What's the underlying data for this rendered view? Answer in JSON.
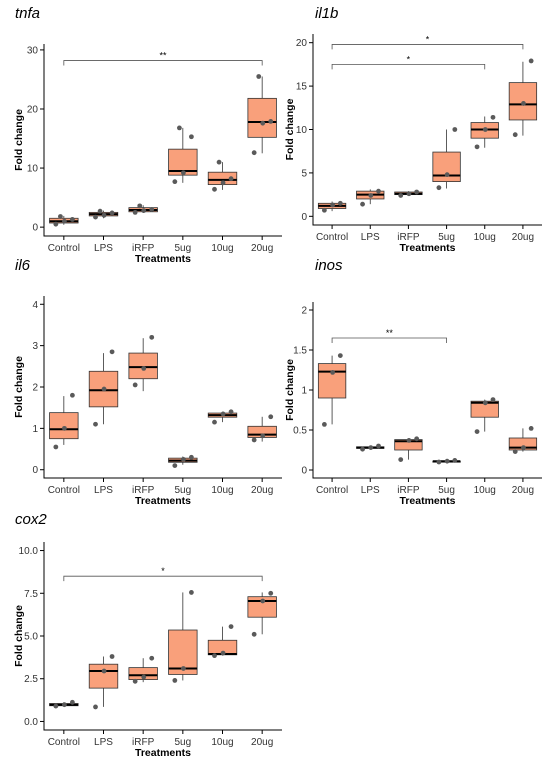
{
  "colors": {
    "box_fill": "#F9A07B",
    "box_stroke": "#333333",
    "median": "#000000",
    "point": "#5a5a5a",
    "axis": "#000000",
    "bracket": "#555555"
  },
  "chart_data": [
    {
      "type": "box",
      "title": "tnfa",
      "xlabel": "Treatments",
      "ylabel": "Fold change",
      "categories": [
        "Control",
        "LPS",
        "iRFP",
        "5ug",
        "10ug",
        "20ug"
      ],
      "ylim": [
        -1.5,
        31
      ],
      "yticks": [
        0,
        10,
        20,
        30
      ],
      "boxes": [
        {
          "min": 0.4,
          "q1": 0.7,
          "median": 1.0,
          "q3": 1.5,
          "max": 1.9
        },
        {
          "min": 1.5,
          "q1": 1.9,
          "median": 2.2,
          "q3": 2.5,
          "max": 2.8
        },
        {
          "min": 2.4,
          "q1": 2.6,
          "median": 2.9,
          "q3": 3.3,
          "max": 3.7
        },
        {
          "min": 7.5,
          "q1": 8.8,
          "median": 9.5,
          "q3": 13.2,
          "max": 16.8
        },
        {
          "min": 6.3,
          "q1": 7.2,
          "median": 8.0,
          "q3": 9.3,
          "max": 11.0
        },
        {
          "min": 12.5,
          "q1": 15.2,
          "median": 17.8,
          "q3": 21.8,
          "max": 25.5
        }
      ],
      "points": [
        [
          0.5,
          1.0,
          1.3,
          1.8
        ],
        [
          1.7,
          2.0,
          2.4,
          2.7
        ],
        [
          2.5,
          2.8,
          3.0,
          3.6
        ],
        [
          7.7,
          9.2,
          15.3,
          16.8
        ],
        [
          6.4,
          7.5,
          8.2,
          11.0
        ],
        [
          12.6,
          17.6,
          17.9,
          25.5
        ]
      ],
      "brackets": [
        {
          "from": 0,
          "to": 5,
          "y": 28.2,
          "label": "**"
        }
      ]
    },
    {
      "type": "box",
      "title": "il1b",
      "xlabel": "Treatments",
      "ylabel": "Fold change",
      "categories": [
        "Control",
        "LPS",
        "iRFP",
        "5ug",
        "10ug",
        "20ug"
      ],
      "ylim": [
        -1,
        21
      ],
      "yticks": [
        0,
        5,
        10,
        15,
        20
      ],
      "boxes": [
        {
          "min": 0.6,
          "q1": 0.9,
          "median": 1.2,
          "q3": 1.5,
          "max": 1.7
        },
        {
          "min": 1.4,
          "q1": 2.0,
          "median": 2.5,
          "q3": 2.9,
          "max": 3.1
        },
        {
          "min": 2.4,
          "q1": 2.5,
          "median": 2.6,
          "q3": 2.8,
          "max": 2.9
        },
        {
          "min": 3.2,
          "q1": 4.0,
          "median": 4.7,
          "q3": 7.4,
          "max": 10.0
        },
        {
          "min": 7.9,
          "q1": 9.0,
          "median": 10.0,
          "q3": 10.8,
          "max": 11.5
        },
        {
          "min": 9.3,
          "q1": 11.1,
          "median": 12.9,
          "q3": 15.4,
          "max": 17.8
        }
      ],
      "points": [
        [
          0.7,
          1.3,
          1.5
        ],
        [
          1.4,
          2.4,
          2.9
        ],
        [
          2.4,
          2.6,
          2.8
        ],
        [
          3.3,
          4.8,
          10.0
        ],
        [
          8.0,
          10.0,
          11.4
        ],
        [
          9.4,
          13.0,
          17.9
        ]
      ],
      "brackets": [
        {
          "from": 0,
          "to": 5,
          "y": 19.8,
          "label": "*"
        },
        {
          "from": 0,
          "to": 4,
          "y": 17.5,
          "label": "*"
        }
      ]
    },
    {
      "type": "box",
      "title": "il6",
      "xlabel": "Treatments",
      "ylabel": "Fold change",
      "categories": [
        "Control",
        "LPS",
        "iRFP",
        "5ug",
        "10ug",
        "20ug"
      ],
      "ylim": [
        -0.2,
        4.2
      ],
      "yticks": [
        0,
        1,
        2,
        3,
        4
      ],
      "boxes": [
        {
          "min": 0.6,
          "q1": 0.75,
          "median": 0.98,
          "q3": 1.38,
          "max": 1.78
        },
        {
          "min": 1.1,
          "q1": 1.52,
          "median": 1.92,
          "q3": 2.38,
          "max": 2.82
        },
        {
          "min": 1.9,
          "q1": 2.2,
          "median": 2.48,
          "q3": 2.82,
          "max": 3.18
        },
        {
          "min": 0.12,
          "q1": 0.18,
          "median": 0.22,
          "q3": 0.28,
          "max": 0.32
        },
        {
          "min": 1.15,
          "q1": 1.27,
          "median": 1.32,
          "q3": 1.37,
          "max": 1.4
        },
        {
          "min": 0.68,
          "q1": 0.78,
          "median": 0.85,
          "q3": 1.05,
          "max": 1.28
        }
      ],
      "points": [
        [
          0.55,
          1.0,
          1.8
        ],
        [
          1.1,
          1.95,
          2.85
        ],
        [
          2.05,
          2.45,
          3.2
        ],
        [
          0.1,
          0.25,
          0.3
        ],
        [
          1.15,
          1.35,
          1.4
        ],
        [
          0.72,
          0.82,
          1.28
        ]
      ],
      "brackets": []
    },
    {
      "type": "box",
      "title": "inos",
      "xlabel": "Treatments",
      "ylabel": "Fold change",
      "categories": [
        "Control",
        "LPS",
        "iRFP",
        "5ug",
        "10ug",
        "20ug"
      ],
      "ylim": [
        -0.1,
        2.1
      ],
      "yticks": [
        0.0,
        0.5,
        1.0,
        1.5,
        2.0
      ],
      "boxes": [
        {
          "min": 0.57,
          "q1": 0.9,
          "median": 1.23,
          "q3": 1.33,
          "max": 1.43
        },
        {
          "min": 0.26,
          "q1": 0.27,
          "median": 0.28,
          "q3": 0.29,
          "max": 0.3
        },
        {
          "min": 0.13,
          "q1": 0.25,
          "median": 0.36,
          "q3": 0.38,
          "max": 0.39
        },
        {
          "min": 0.1,
          "q1": 0.1,
          "median": 0.11,
          "q3": 0.11,
          "max": 0.12
        },
        {
          "min": 0.48,
          "q1": 0.66,
          "median": 0.84,
          "q3": 0.86,
          "max": 0.88
        },
        {
          "min": 0.23,
          "q1": 0.25,
          "median": 0.28,
          "q3": 0.4,
          "max": 0.52
        }
      ],
      "points": [
        [
          0.57,
          1.22,
          1.43
        ],
        [
          0.26,
          0.28,
          0.3
        ],
        [
          0.13,
          0.37,
          0.39
        ],
        [
          0.1,
          0.11,
          0.12
        ],
        [
          0.48,
          0.84,
          0.88
        ],
        [
          0.23,
          0.28,
          0.52
        ]
      ],
      "brackets": [
        {
          "from": 0,
          "to": 3,
          "y": 1.65,
          "label": "**"
        }
      ]
    },
    {
      "type": "box",
      "title": "cox2",
      "xlabel": "Treatments",
      "ylabel": "Fold change",
      "categories": [
        "Control",
        "LPS",
        "iRFP",
        "5ug",
        "10ug",
        "20ug"
      ],
      "ylim": [
        -0.5,
        10.5
      ],
      "yticks": [
        "0.0",
        "2.5",
        "5.0",
        "7.5",
        "10.0"
      ],
      "yticks_num": [
        0,
        2.5,
        5,
        7.5,
        10
      ],
      "boxes": [
        {
          "min": 0.88,
          "q1": 0.92,
          "median": 0.98,
          "q3": 1.05,
          "max": 1.12
        },
        {
          "min": 0.85,
          "q1": 1.95,
          "median": 2.95,
          "q3": 3.35,
          "max": 3.8
        },
        {
          "min": 2.3,
          "q1": 2.45,
          "median": 2.7,
          "q3": 3.15,
          "max": 3.7
        },
        {
          "min": 2.4,
          "q1": 2.75,
          "median": 3.1,
          "q3": 5.35,
          "max": 7.55
        },
        {
          "min": 3.85,
          "q1": 3.9,
          "median": 3.95,
          "q3": 4.75,
          "max": 5.55
        },
        {
          "min": 5.1,
          "q1": 6.1,
          "median": 7.05,
          "q3": 7.3,
          "max": 7.55
        }
      ],
      "points": [
        [
          0.9,
          0.98,
          1.12
        ],
        [
          0.85,
          2.95,
          3.8
        ],
        [
          2.35,
          2.6,
          3.7
        ],
        [
          2.4,
          3.1,
          7.55
        ],
        [
          3.85,
          4.0,
          5.55
        ],
        [
          5.1,
          7.05,
          7.5
        ]
      ],
      "brackets": [
        {
          "from": 0,
          "to": 5,
          "y": 8.5,
          "label": "*"
        }
      ]
    }
  ]
}
